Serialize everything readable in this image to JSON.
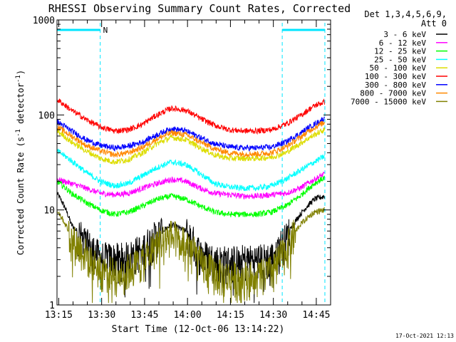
{
  "chart_data": {
    "type": "line",
    "title": "RHESSI Observing Summary Count Rates, Corrected",
    "xlabel": "Start Time (12-Oct-06 13:14:22)",
    "ylabel": "Corrected Count Rate (s",
    "ylabel_sup1": "-1",
    "ylabel_mid": " detector",
    "ylabel_sup2": "-1",
    "ylabel_end": ")",
    "yscale": "log",
    "ylim": [
      1,
      1000
    ],
    "xlim_minutes": [
      0,
      95.6
    ],
    "x_ticks": [
      {
        "label": "13:15",
        "minutes": 0.6
      },
      {
        "label": "13:30",
        "minutes": 15.6
      },
      {
        "label": "13:45",
        "minutes": 30.6
      },
      {
        "label": "14:00",
        "minutes": 45.6
      },
      {
        "label": "14:15",
        "minutes": 60.6
      },
      {
        "label": "14:30",
        "minutes": 75.6
      },
      {
        "label": "14:45",
        "minutes": 90.6
      }
    ],
    "y_ticks": [
      {
        "label": "1",
        "value": 1
      },
      {
        "label": "10",
        "value": 10
      },
      {
        "label": "100",
        "value": 100
      },
      {
        "label": "1000",
        "value": 1000
      }
    ],
    "legend": {
      "header1": "Det 1,3,4,5,6,9,",
      "header2": "Att 0",
      "position": "right"
    },
    "night_intervals": [
      [
        0,
        15.1
      ],
      [
        78.7,
        93.6
      ]
    ],
    "saa_label": "N",
    "series": [
      {
        "name": "3 - 6 keV",
        "color": "#000000",
        "x": [
          0,
          5,
          10,
          15,
          20,
          25,
          30,
          35,
          40,
          45,
          50,
          55,
          60,
          65,
          70,
          75,
          80,
          85,
          90,
          93.6
        ],
        "y": [
          15,
          7,
          4.5,
          3.2,
          3.1,
          3.2,
          4,
          5.5,
          7,
          6,
          3.5,
          3,
          2.9,
          3,
          3,
          3.2,
          5,
          9,
          13,
          14
        ]
      },
      {
        "name": "6 - 12 keV",
        "color": "#ff00ff",
        "x": [
          0,
          5,
          10,
          15,
          20,
          25,
          30,
          35,
          40,
          45,
          50,
          55,
          60,
          65,
          70,
          75,
          80,
          85,
          90,
          93.6
        ],
        "y": [
          21,
          19,
          17,
          15,
          14.5,
          15,
          17,
          19,
          21,
          20,
          17,
          15,
          14.5,
          14,
          14,
          14.5,
          15,
          17,
          21,
          24
        ]
      },
      {
        "name": "12 - 25 keV",
        "color": "#00ff00",
        "x": [
          0,
          5,
          10,
          15,
          20,
          25,
          30,
          35,
          40,
          45,
          50,
          55,
          60,
          65,
          70,
          75,
          80,
          85,
          90,
          93.6
        ],
        "y": [
          20,
          15,
          12,
          10,
          9,
          9.5,
          11,
          13,
          14,
          13,
          11,
          9.5,
          9,
          9,
          9,
          9.5,
          11,
          14,
          19,
          22
        ]
      },
      {
        "name": "25 - 50 keV",
        "color": "#00ffff",
        "x": [
          0,
          5,
          10,
          15,
          20,
          25,
          30,
          35,
          40,
          45,
          50,
          55,
          60,
          65,
          70,
          75,
          80,
          85,
          90,
          93.6
        ],
        "y": [
          42,
          33,
          25,
          20,
          18,
          19,
          23,
          28,
          32,
          30,
          24,
          19,
          17.5,
          17,
          17,
          18,
          21,
          26,
          32,
          37
        ]
      },
      {
        "name": "50 - 100 keV",
        "color": "#dddd00",
        "x": [
          0,
          5,
          10,
          15,
          20,
          25,
          30,
          35,
          40,
          45,
          50,
          55,
          60,
          65,
          70,
          75,
          80,
          85,
          90,
          93.6
        ],
        "y": [
          68,
          52,
          42,
          35,
          32,
          34,
          40,
          50,
          58,
          55,
          45,
          38,
          35,
          35,
          35,
          36,
          40,
          50,
          62,
          70
        ]
      },
      {
        "name": "100 - 300 keV",
        "color": "#ff0000",
        "x": [
          0,
          5,
          10,
          15,
          20,
          25,
          30,
          35,
          40,
          45,
          50,
          55,
          60,
          65,
          70,
          75,
          80,
          85,
          90,
          93.6
        ],
        "y": [
          145,
          112,
          90,
          75,
          68,
          70,
          80,
          100,
          118,
          112,
          92,
          78,
          70,
          68,
          68,
          70,
          80,
          98,
          125,
          138
        ]
      },
      {
        "name": "300 - 800 keV",
        "color": "#0000ff",
        "x": [
          0,
          5,
          10,
          15,
          20,
          25,
          30,
          35,
          40,
          45,
          50,
          55,
          60,
          65,
          70,
          75,
          80,
          85,
          90,
          93.6
        ],
        "y": [
          85,
          68,
          55,
          48,
          45,
          47,
          52,
          62,
          72,
          68,
          58,
          50,
          46,
          45,
          45,
          46,
          52,
          64,
          80,
          92
        ]
      },
      {
        "name": "800 - 7000 keV",
        "color": "#ff8800",
        "x": [
          0,
          5,
          10,
          15,
          20,
          25,
          30,
          35,
          40,
          45,
          50,
          55,
          60,
          65,
          70,
          75,
          80,
          85,
          90,
          93.6
        ],
        "y": [
          75,
          60,
          48,
          42,
          38,
          40,
          46,
          56,
          65,
          62,
          52,
          44,
          40,
          39,
          39,
          40,
          46,
          58,
          74,
          84
        ]
      },
      {
        "name": "7000 - 15000 keV",
        "color": "#808000",
        "x": [
          0,
          5,
          10,
          15,
          20,
          25,
          30,
          35,
          40,
          45,
          50,
          55,
          60,
          65,
          70,
          75,
          80,
          85,
          90,
          93.6
        ],
        "y": [
          10,
          5,
          3.5,
          2.4,
          2.2,
          2.4,
          3,
          4.5,
          5.5,
          4.8,
          2.8,
          2.2,
          2,
          2,
          2,
          2.3,
          3.8,
          7,
          9.5,
          10
        ]
      }
    ]
  },
  "timestamp": "17-Oct-2021 12:13"
}
